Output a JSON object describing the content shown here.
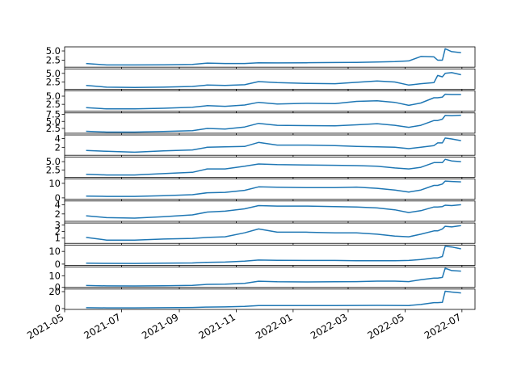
{
  "chart_data": {
    "type": "line",
    "layout": "stacked-small-multiples",
    "shared_x": true,
    "x_tick_labels": [
      "2021-05",
      "2021-07",
      "2021-09",
      "2021-11",
      "2022-01",
      "2022-03",
      "2022-05",
      "2022-07"
    ],
    "x_range": [
      "2021-05-01",
      "2022-07-15"
    ],
    "grid": false,
    "line_color": "#1f77b4",
    "x": [
      "2021-05-24",
      "2021-06-15",
      "2021-07-15",
      "2021-08-15",
      "2021-09-15",
      "2021-10-01",
      "2021-10-20",
      "2021-11-10",
      "2021-11-25",
      "2021-12-15",
      "2022-01-15",
      "2022-02-15",
      "2022-03-10",
      "2022-04-01",
      "2022-04-20",
      "2022-05-05",
      "2022-05-18",
      "2022-06-01",
      "2022-06-05",
      "2022-06-10",
      "2022-06-13",
      "2022-06-20",
      "2022-06-30"
    ],
    "panels": [
      {
        "yticks": [
          2.5,
          5.0
        ],
        "ylim": [
          0.6,
          6.1
        ],
        "values": [
          1.6,
          1.2,
          1.2,
          1.25,
          1.35,
          1.7,
          1.6,
          1.6,
          1.8,
          1.75,
          1.8,
          1.85,
          1.9,
          2.0,
          2.1,
          2.3,
          3.5,
          3.4,
          2.5,
          2.5,
          5.6,
          4.8,
          4.5
        ]
      },
      {
        "yticks": [
          2.5,
          5.0
        ],
        "ylim": [
          0.4,
          6.3
        ],
        "values": [
          1.5,
          1.0,
          0.9,
          1.0,
          1.2,
          1.6,
          1.5,
          1.7,
          2.6,
          2.3,
          2.1,
          2.0,
          2.4,
          2.8,
          2.5,
          1.6,
          2.0,
          2.3,
          4.4,
          4.0,
          5.0,
          5.2,
          4.6
        ]
      },
      {
        "yticks": [
          2.5,
          5.0
        ],
        "ylim": [
          0.4,
          6.6
        ],
        "values": [
          1.5,
          1.1,
          1.1,
          1.3,
          1.6,
          2.1,
          1.9,
          2.3,
          3.1,
          2.6,
          2.8,
          2.7,
          3.4,
          3.6,
          3.1,
          2.2,
          2.9,
          4.5,
          4.5,
          4.7,
          5.6,
          5.5,
          5.5
        ]
      },
      {
        "yticks": [
          2.5,
          5.0,
          7.5
        ],
        "ylim": [
          0.8,
          8.0
        ],
        "values": [
          1.5,
          1.2,
          1.2,
          1.4,
          1.7,
          2.5,
          2.3,
          3.0,
          4.3,
          3.6,
          3.5,
          3.4,
          3.8,
          4.2,
          3.6,
          2.9,
          3.6,
          5.3,
          5.3,
          5.8,
          7.1,
          7.0,
          7.2
        ]
      },
      {
        "yticks": [
          2,
          4
        ],
        "ylim": [
          0.2,
          4.8
        ],
        "values": [
          1.3,
          1.1,
          0.9,
          1.2,
          1.4,
          2.0,
          2.1,
          2.2,
          3.1,
          2.5,
          2.5,
          2.4,
          2.2,
          2.1,
          2.0,
          1.7,
          2.0,
          2.4,
          3.0,
          3.0,
          4.1,
          3.9,
          3.5
        ]
      },
      {
        "yticks": [
          2.5,
          5.0
        ],
        "ylim": [
          0.3,
          6.4
        ],
        "values": [
          1.2,
          1.0,
          1.0,
          1.4,
          1.8,
          2.8,
          2.8,
          3.6,
          4.3,
          4.1,
          4.0,
          3.9,
          3.8,
          3.6,
          3.1,
          2.8,
          3.3,
          4.7,
          4.7,
          4.7,
          5.7,
          5.2,
          5.0
        ]
      },
      {
        "yticks": [
          0,
          10
        ],
        "ylim": [
          -1.0,
          13.0
        ],
        "values": [
          1.2,
          1.0,
          1.0,
          1.5,
          2.2,
          3.5,
          3.8,
          5.2,
          7.6,
          7.3,
          7.1,
          7.0,
          7.4,
          6.6,
          5.4,
          4.0,
          5.4,
          8.6,
          8.6,
          9.5,
          11.6,
          11.3,
          11.0
        ]
      },
      {
        "yticks": [
          2,
          4
        ],
        "ylim": [
          0.4,
          4.8
        ],
        "values": [
          1.6,
          1.2,
          1.1,
          1.4,
          1.8,
          2.4,
          2.6,
          3.1,
          3.8,
          3.7,
          3.7,
          3.6,
          3.5,
          3.3,
          2.9,
          2.3,
          2.7,
          3.5,
          3.5,
          3.6,
          3.9,
          3.8,
          4.0
        ]
      },
      {
        "yticks": [
          1,
          2,
          3
        ],
        "ylim": [
          0.2,
          3.3
        ],
        "values": [
          1.1,
          0.7,
          0.7,
          0.85,
          0.95,
          1.1,
          1.2,
          1.8,
          2.4,
          1.9,
          1.9,
          1.8,
          1.8,
          1.6,
          1.3,
          1.2,
          1.6,
          2.1,
          2.1,
          2.4,
          2.8,
          2.7,
          2.9
        ]
      },
      {
        "yticks": [
          0,
          10
        ],
        "ylim": [
          -1.0,
          15.0
        ],
        "values": [
          0.8,
          0.6,
          0.5,
          0.7,
          0.9,
          1.4,
          1.6,
          2.3,
          3.2,
          3.0,
          2.9,
          2.9,
          2.7,
          2.7,
          2.7,
          2.9,
          3.6,
          4.9,
          4.9,
          6.0,
          14.0,
          13.5,
          12.0
        ]
      },
      {
        "yticks": [
          0,
          10
        ],
        "ylim": [
          0.0,
          17.5
        ],
        "values": [
          1.6,
          1.3,
          1.2,
          1.4,
          1.8,
          2.6,
          2.8,
          3.5,
          5.3,
          4.8,
          4.7,
          4.8,
          5.0,
          5.4,
          5.4,
          5.0,
          6.6,
          8.0,
          8.0,
          8.6,
          16.5,
          14.5,
          14.0
        ]
      },
      {
        "yticks": [
          0,
          20
        ],
        "ylim": [
          -1.0,
          23.0
        ],
        "values": [
          1.0,
          0.8,
          0.8,
          1.0,
          1.3,
          1.8,
          2.0,
          2.5,
          3.6,
          3.5,
          3.5,
          3.6,
          3.7,
          3.8,
          3.7,
          3.6,
          4.8,
          7.0,
          7.0,
          7.3,
          20.5,
          19.5,
          18.5
        ]
      }
    ]
  }
}
